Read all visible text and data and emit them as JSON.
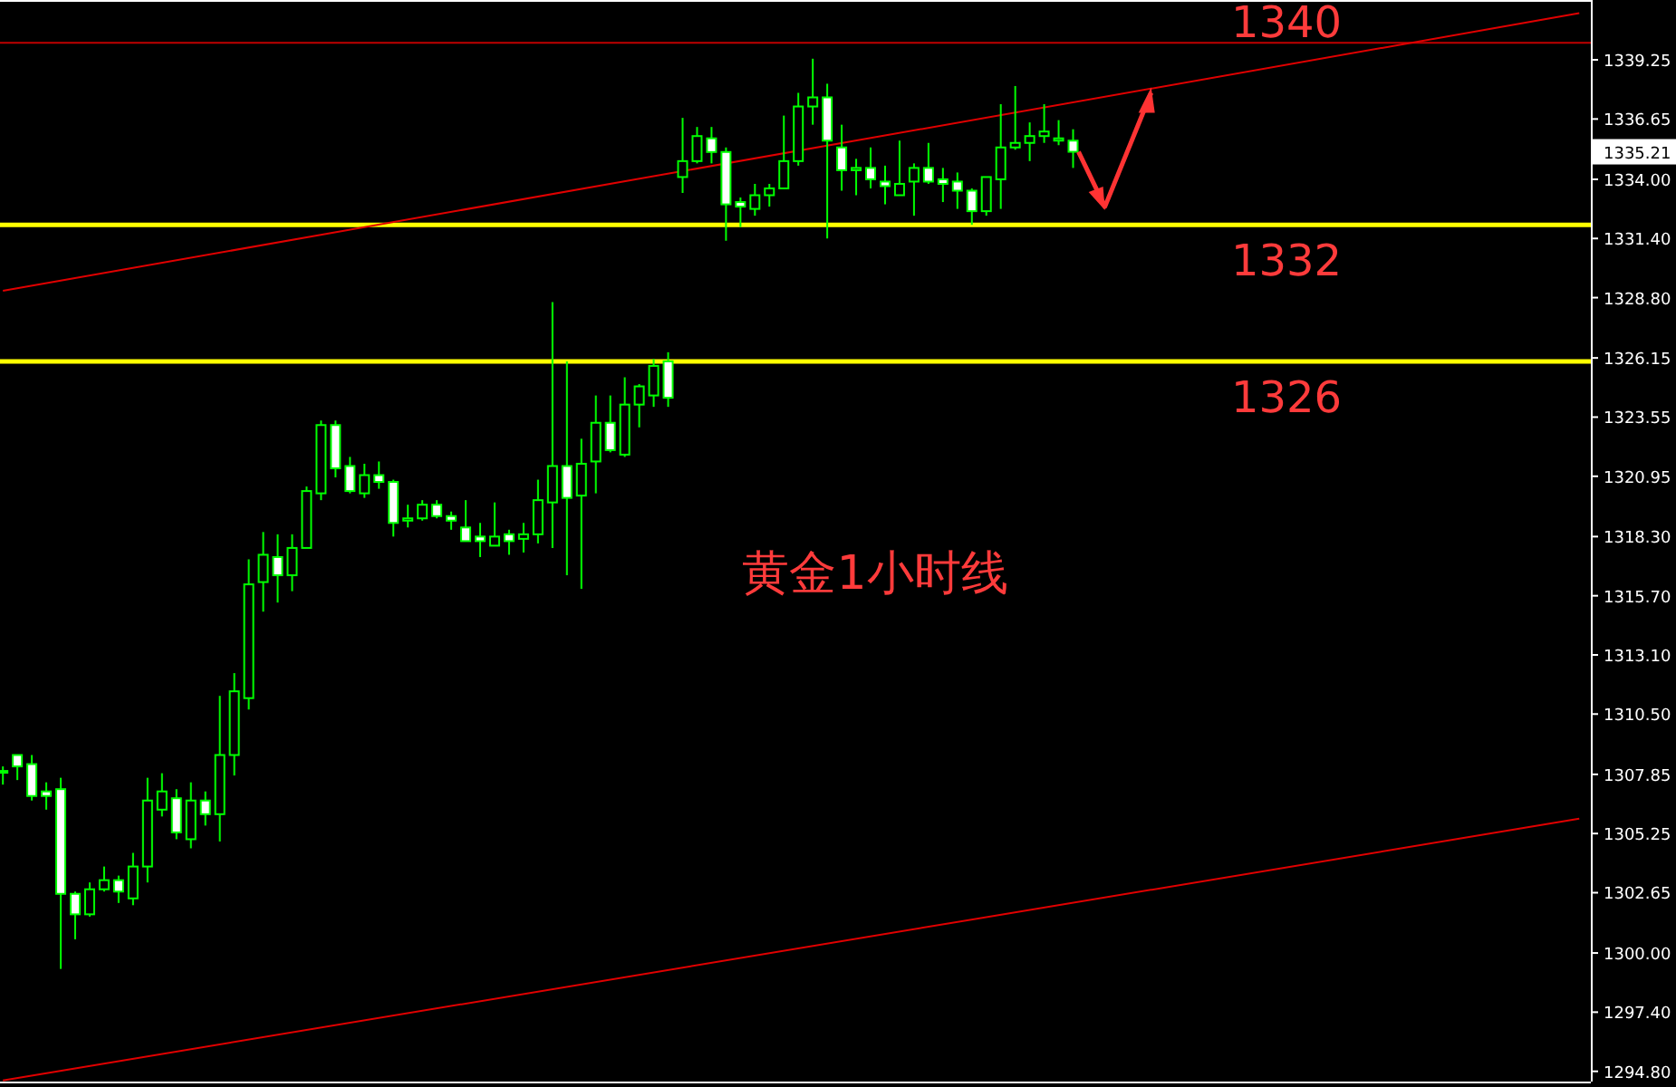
{
  "chart_data": {
    "type": "candlestick",
    "categories": [
      null,
      null,
      null,
      null,
      null,
      null,
      null,
      null,
      null,
      null,
      null,
      null,
      null,
      null,
      null,
      null,
      null,
      null,
      null,
      null,
      null,
      null,
      null,
      null,
      null,
      null,
      null,
      null,
      null,
      null,
      null,
      null,
      null,
      null,
      null,
      null,
      null,
      null,
      null,
      null,
      null,
      null,
      null,
      null,
      null,
      null,
      null,
      null,
      null,
      null,
      null,
      null,
      null,
      null,
      null,
      null,
      null,
      null,
      null,
      null,
      null,
      null,
      null,
      null,
      null,
      null,
      null,
      null,
      null,
      null,
      null,
      null,
      null,
      null,
      null,
      null,
      null,
      null,
      null,
      null,
      null,
      null,
      null,
      null,
      null,
      null,
      null,
      null,
      null,
      null,
      null,
      null,
      null,
      null,
      null,
      null,
      null,
      null,
      null,
      null,
      null,
      null,
      null,
      null,
      null,
      null,
      null,
      null,
      null,
      null
    ],
    "ohlc": [
      [
        1308.0,
        1308.2,
        1307.4,
        1308.0
      ],
      [
        1308.7,
        1308.7,
        1307.6,
        1308.2
      ],
      [
        1308.3,
        1308.7,
        1306.7,
        1306.9
      ],
      [
        1307.1,
        1307.5,
        1306.3,
        1306.9
      ],
      [
        1307.2,
        1307.7,
        1299.3,
        1302.6
      ],
      [
        1302.6,
        1302.7,
        1300.6,
        1301.7
      ],
      [
        1301.7,
        1303.1,
        1301.6,
        1302.8
      ],
      [
        1302.8,
        1303.8,
        1302.7,
        1303.2
      ],
      [
        1303.2,
        1303.4,
        1302.2,
        1302.7
      ],
      [
        1302.4,
        1304.4,
        1302.1,
        1303.8
      ],
      [
        1303.8,
        1307.7,
        1303.1,
        1306.7
      ],
      [
        1306.3,
        1307.9,
        1306.0,
        1307.1
      ],
      [
        1306.8,
        1307.2,
        1305.0,
        1305.3
      ],
      [
        1305.0,
        1307.5,
        1304.6,
        1306.7
      ],
      [
        1306.7,
        1307.1,
        1305.6,
        1306.1
      ],
      [
        1306.1,
        1311.3,
        1304.9,
        1308.7
      ],
      [
        1308.7,
        1312.3,
        1307.8,
        1311.5
      ],
      [
        1311.2,
        1317.3,
        1310.7,
        1316.2
      ],
      [
        1316.3,
        1318.5,
        1315.0,
        1317.5
      ],
      [
        1317.4,
        1318.4,
        1315.4,
        1316.6
      ],
      [
        1316.6,
        1318.4,
        1315.9,
        1317.8
      ],
      [
        1317.8,
        1320.5,
        1317.8,
        1320.3
      ],
      [
        1320.2,
        1323.4,
        1319.9,
        1323.2
      ],
      [
        1323.2,
        1323.4,
        1320.9,
        1321.3
      ],
      [
        1321.4,
        1321.8,
        1320.2,
        1320.3
      ],
      [
        1320.2,
        1321.5,
        1320.0,
        1321.0
      ],
      [
        1321.0,
        1321.6,
        1320.4,
        1320.7
      ],
      [
        1320.7,
        1320.8,
        1318.3,
        1318.9
      ],
      [
        1319.0,
        1319.7,
        1318.7,
        1319.1
      ],
      [
        1319.1,
        1319.9,
        1319.0,
        1319.7
      ],
      [
        1319.7,
        1319.9,
        1319.1,
        1319.2
      ],
      [
        1319.2,
        1319.4,
        1318.6,
        1319.0
      ],
      [
        1318.7,
        1319.9,
        1318.1,
        1318.1
      ],
      [
        1318.3,
        1318.9,
        1317.4,
        1318.1
      ],
      [
        1317.9,
        1319.8,
        1317.9,
        1318.3
      ],
      [
        1318.4,
        1318.6,
        1317.5,
        1318.1
      ],
      [
        1318.2,
        1318.9,
        1317.6,
        1318.4
      ],
      [
        1318.4,
        1320.8,
        1318.0,
        1319.9
      ],
      [
        1319.8,
        1328.6,
        1317.8,
        1321.4
      ],
      [
        1321.4,
        1326.0,
        1316.6,
        1320.0
      ],
      [
        1320.1,
        1322.6,
        1316.0,
        1321.5
      ],
      [
        1321.6,
        1324.5,
        1320.2,
        1323.3
      ],
      [
        1323.3,
        1324.5,
        1322.0,
        1322.1
      ],
      [
        1321.9,
        1325.3,
        1321.8,
        1324.1
      ],
      [
        1324.1,
        1325.0,
        1323.1,
        1324.9
      ],
      [
        1324.5,
        1326.1,
        1324.0,
        1325.8
      ],
      [
        1326.0,
        1326.4,
        1324.0,
        1324.4
      ],
      [
        1334.1,
        1336.7,
        1333.4,
        1334.8
      ],
      [
        1334.8,
        1336.3,
        1334.7,
        1335.9
      ],
      [
        1335.8,
        1336.3,
        1334.7,
        1335.2
      ],
      [
        1335.2,
        1335.4,
        1331.3,
        1332.9
      ],
      [
        1333.0,
        1333.2,
        1331.9,
        1332.8
      ],
      [
        1332.7,
        1333.8,
        1332.4,
        1333.3
      ],
      [
        1333.3,
        1333.8,
        1332.8,
        1333.6
      ],
      [
        1333.6,
        1336.8,
        1333.6,
        1334.8
      ],
      [
        1334.8,
        1337.8,
        1334.6,
        1337.2
      ],
      [
        1337.2,
        1339.3,
        1336.4,
        1337.6
      ],
      [
        1337.6,
        1338.2,
        1331.4,
        1335.7
      ],
      [
        1335.4,
        1336.4,
        1333.5,
        1334.4
      ],
      [
        1334.4,
        1334.9,
        1333.3,
        1334.5
      ],
      [
        1334.5,
        1335.4,
        1333.6,
        1334.0
      ],
      [
        1333.9,
        1334.6,
        1332.9,
        1333.7
      ],
      [
        1333.3,
        1335.7,
        1333.3,
        1333.8
      ],
      [
        1333.9,
        1334.7,
        1332.4,
        1334.5
      ],
      [
        1334.5,
        1335.6,
        1333.8,
        1333.9
      ],
      [
        1334.0,
        1334.5,
        1333.0,
        1333.8
      ],
      [
        1333.9,
        1334.3,
        1332.7,
        1333.5
      ],
      [
        1333.5,
        1333.6,
        1332.0,
        1332.6
      ],
      [
        1332.6,
        1334.1,
        1332.4,
        1334.1
      ],
      [
        1334.0,
        1337.3,
        1332.7,
        1335.4
      ],
      [
        1335.4,
        1338.1,
        1335.3,
        1335.6
      ],
      [
        1335.6,
        1336.5,
        1334.8,
        1335.9
      ],
      [
        1335.9,
        1337.3,
        1335.6,
        1336.1
      ],
      [
        1335.7,
        1336.6,
        1335.5,
        1335.8
      ],
      [
        1335.7,
        1336.2,
        1334.5,
        1335.21
      ],
      null,
      null,
      null,
      null,
      null,
      null,
      null,
      null,
      null,
      null,
      null,
      null,
      null,
      null,
      null,
      null,
      null,
      null,
      null,
      null,
      null,
      null,
      null,
      null,
      null,
      null,
      null,
      null,
      null,
      null,
      null,
      null,
      null,
      null,
      null
    ],
    "series": [
      {
        "type": "line",
        "color": "#e00000",
        "values": [
          1329.1,
          null,
          null,
          null,
          null,
          null,
          null,
          null,
          null,
          null,
          null,
          null,
          null,
          null,
          null,
          null,
          null,
          null,
          null,
          null,
          null,
          null,
          null,
          null,
          null,
          null,
          null,
          null,
          null,
          null,
          null,
          null,
          null,
          null,
          null,
          null,
          null,
          null,
          null,
          null,
          null,
          null,
          null,
          null,
          null,
          null,
          null,
          null,
          null,
          null,
          null,
          null,
          null,
          null,
          null,
          null,
          null,
          null,
          null,
          null,
          null,
          null,
          null,
          null,
          null,
          null,
          null,
          null,
          null,
          null,
          null,
          null,
          null,
          null,
          null,
          null,
          null,
          null,
          null,
          null,
          null,
          null,
          null,
          null,
          null,
          null,
          null,
          null,
          null,
          null,
          null,
          null,
          null,
          null,
          null,
          null,
          null,
          null,
          null,
          null,
          null,
          null,
          null,
          null,
          null,
          null,
          null,
          null,
          null,
          1341.3
        ]
      },
      {
        "type": "line",
        "color": "#e00000",
        "values": [
          1294.4,
          null,
          null,
          null,
          null,
          null,
          null,
          null,
          null,
          null,
          null,
          null,
          null,
          null,
          null,
          null,
          null,
          null,
          null,
          null,
          null,
          null,
          null,
          null,
          null,
          null,
          null,
          null,
          null,
          null,
          null,
          null,
          null,
          null,
          null,
          null,
          null,
          null,
          null,
          null,
          null,
          null,
          null,
          null,
          null,
          null,
          null,
          null,
          null,
          null,
          null,
          null,
          null,
          null,
          null,
          null,
          null,
          null,
          null,
          null,
          null,
          null,
          null,
          null,
          null,
          null,
          null,
          null,
          null,
          null,
          null,
          null,
          null,
          null,
          null,
          null,
          null,
          null,
          null,
          null,
          null,
          null,
          null,
          null,
          null,
          null,
          null,
          null,
          null,
          null,
          null,
          null,
          null,
          null,
          null,
          null,
          null,
          null,
          null,
          null,
          null,
          null,
          null,
          null,
          null,
          null,
          null,
          null,
          null,
          1305.9
        ]
      }
    ],
    "ylim": [
      1294.35,
      1341.8
    ],
    "yticks": [
      {
        "value": 1339.25,
        "label": "1339.25"
      },
      {
        "value": 1336.65,
        "label": "1336.65"
      },
      {
        "value": 1334.0,
        "label": "1334.00"
      },
      {
        "value": 1331.4,
        "label": "1331.40"
      },
      {
        "value": 1328.8,
        "label": "1328.80"
      },
      {
        "value": 1326.15,
        "label": "1326.15"
      },
      {
        "value": 1323.55,
        "label": "1323.55"
      },
      {
        "value": 1320.95,
        "label": "1320.95"
      },
      {
        "value": 1318.3,
        "label": "1318.30"
      },
      {
        "value": 1315.7,
        "label": "1315.70"
      },
      {
        "value": 1313.1,
        "label": "1313.10"
      },
      {
        "value": 1310.5,
        "label": "1310.50"
      },
      {
        "value": 1307.85,
        "label": "1307.85"
      },
      {
        "value": 1305.25,
        "label": "1305.25"
      },
      {
        "value": 1302.65,
        "label": "1302.65"
      },
      {
        "value": 1300.0,
        "label": "1300.00"
      },
      {
        "value": 1297.4,
        "label": "1297.40"
      },
      {
        "value": 1294.8,
        "label": "1294.80"
      }
    ],
    "ref_lines": [
      {
        "axis": "y",
        "value": 1340,
        "label": "1340",
        "color": "#c00000"
      },
      {
        "axis": "y",
        "value": 1332,
        "label": "1332",
        "color": "#ffff00"
      },
      {
        "axis": "y",
        "value": 1326,
        "label": "1326",
        "color": "#ffff00"
      }
    ],
    "annotations": [
      "1335.21",
      "黄金1小时线"
    ],
    "tick_labels": "y"
  }
}
